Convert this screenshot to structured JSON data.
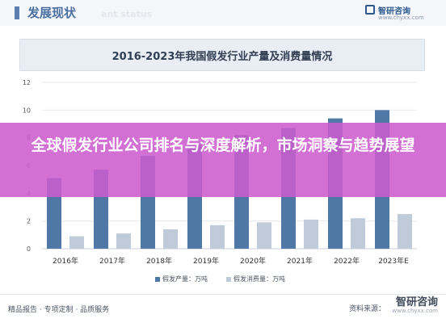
{
  "header": {
    "title": "发展现状",
    "subtitle": "ent status",
    "brand_name": "智研咨询",
    "brand_url": "www.chyxx.com"
  },
  "chart_data": {
    "type": "bar",
    "title": "2016-2023年我国假发行业产量及消费量情况",
    "categories": [
      "2016年",
      "2017年",
      "2018年",
      "2019年",
      "2020年",
      "2021年",
      "2022年",
      "2023年E"
    ],
    "series": [
      {
        "name": "假发产量：万吨",
        "color": "#4f78a6",
        "values": [
          5.1,
          5.7,
          6.7,
          7.5,
          8.2,
          8.7,
          9.4,
          10.0
        ]
      },
      {
        "name": "假发消费量：万吨",
        "color": "#bfcbd8",
        "values": [
          0.9,
          1.1,
          1.4,
          1.7,
          1.9,
          2.1,
          2.2,
          2.5
        ]
      }
    ],
    "y_ticks": [
      "0",
      "2",
      "4",
      "6",
      "8",
      "10",
      "12"
    ],
    "ylim": [
      0,
      12
    ],
    "grid": true,
    "legend_position": "bottom"
  },
  "footer": {
    "left": "精品报告 · 专项定制 · 品质服务",
    "source": "资料来源：",
    "brand": "智研咨询",
    "url": "www.chyxx.com"
  },
  "overlay": {
    "text": "全球假发行业公司排名与深度解析，市场洞察与趋势展望"
  }
}
